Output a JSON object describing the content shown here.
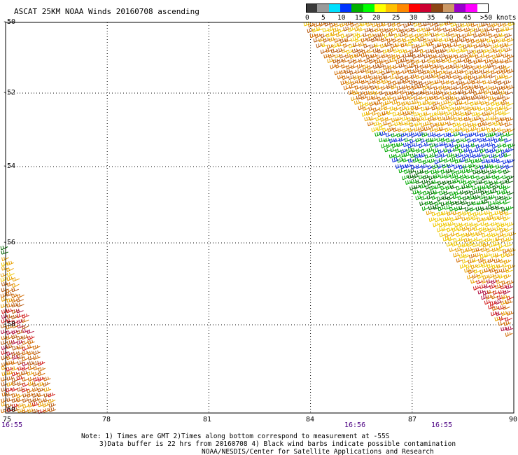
{
  "title": "ASCAT 25KM NOAA Winds 20160708 ascending",
  "colorbar": {
    "segments": [
      {
        "color": "#3a3a3a"
      },
      {
        "color": "#9a9a9a"
      },
      {
        "color": "#00e0ff"
      },
      {
        "color": "#0033ff"
      },
      {
        "color": "#00b000"
      },
      {
        "color": "#00ff00"
      },
      {
        "color": "#ffff00"
      },
      {
        "color": "#ffc000"
      },
      {
        "color": "#ff8800"
      },
      {
        "color": "#ff0000"
      },
      {
        "color": "#cc0033"
      },
      {
        "color": "#8b4513"
      },
      {
        "color": "#cc9966"
      },
      {
        "color": "#9900cc"
      },
      {
        "color": "#ff00ff"
      },
      {
        "color": "#ffffff"
      }
    ],
    "labels": [
      "0",
      "5",
      "10",
      "15",
      "20",
      "25",
      "30",
      "35",
      "40",
      "45",
      ">50 knots"
    ]
  },
  "axes": {
    "x_ticks": [
      "75",
      "78",
      "81",
      "84",
      "87",
      "90"
    ],
    "y_ticks": [
      "-50",
      "-52",
      "-54",
      "-56",
      "-58",
      "-60"
    ]
  },
  "times": [
    "16:55",
    "16:56",
    "16:55"
  ],
  "notes": [
    "Note: 1) Times are GMT 2)Times along bottom correspond to measurement at -55S",
    "3)Data buffer is 22 hrs from 20160708 4) Black wind barbs indicate possible contamination",
    "NOAA/NESDIS/Center for Satellite Applications and Research"
  ],
  "map_data": {
    "lon_range": [
      75,
      90
    ],
    "lat_range": [
      -60,
      -50
    ],
    "barb_colors": {
      "yellow": "#f0c800",
      "gold": "#e8a000",
      "orange": "#d06a00",
      "brown": "#b85a10",
      "red": "#d01818",
      "crimson": "#b01040",
      "green": "#00a800",
      "darkgreen": "#006400",
      "blue": "#1030e0"
    }
  }
}
